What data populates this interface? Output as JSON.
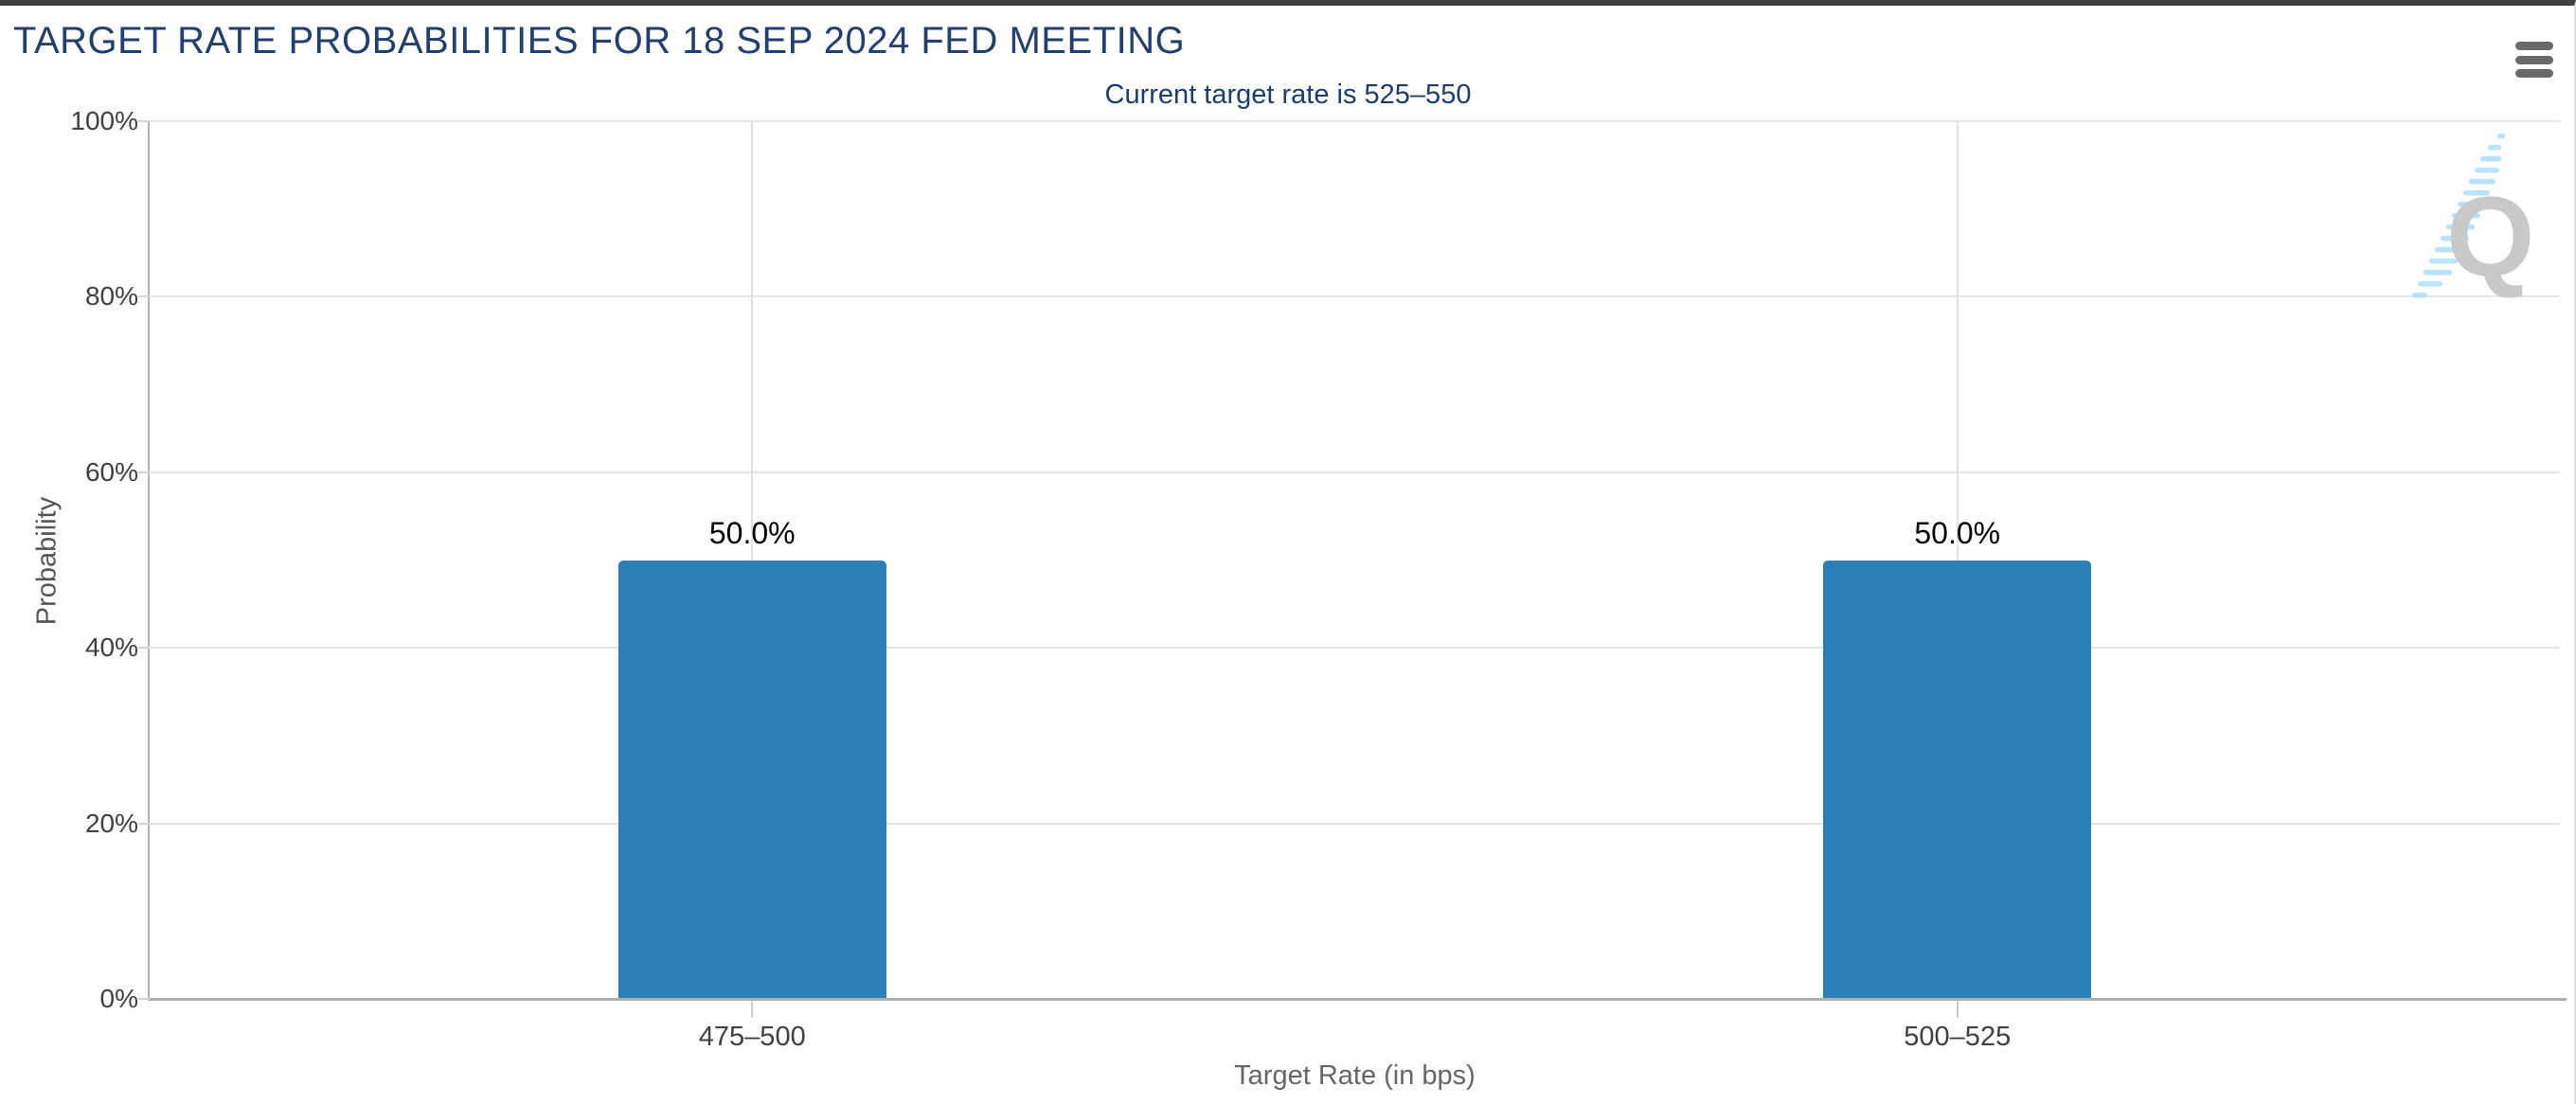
{
  "page": {
    "title": "TARGET RATE PROBABILITIES FOR 18 SEP 2024 FED MEETING"
  },
  "toolbar": {
    "menu_icon": "hamburger-icon"
  },
  "chart_data": {
    "type": "bar",
    "title": "TARGET RATE PROBABILITIES FOR 18 SEP 2024 FED MEETING",
    "subtitle": "Current target rate is 525–550",
    "categories": [
      "475–500",
      "500–525"
    ],
    "values": [
      50.0,
      50.0
    ],
    "value_labels": [
      "50.0%",
      "50.0%"
    ],
    "xlabel": "Target Rate (in bps)",
    "ylabel": "Probability",
    "ylim": [
      0,
      100
    ],
    "yticks": [
      0,
      20,
      40,
      60,
      80,
      100
    ],
    "ytick_labels": [
      "0%",
      "20%",
      "40%",
      "60%",
      "80%",
      "100%"
    ],
    "grid": true,
    "legend": "none",
    "bar_color": "#2b80b9"
  },
  "watermark": {
    "letter": "Q",
    "letter_color": "#c9c9c9",
    "dash_color": "#b8e4f9"
  },
  "colors": {
    "title_navy": "#243f6e",
    "subtitle_navy": "#1e3c6e",
    "axis_text": "#404040",
    "axis_title_gray": "#666666",
    "gridline": "#e6e6e6",
    "axis_line": "#b3b3b3",
    "top_border": "#3e3e3e"
  }
}
